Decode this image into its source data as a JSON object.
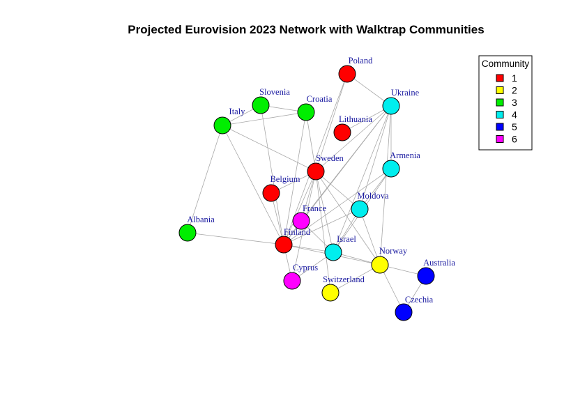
{
  "title": "Projected Eurovision 2023 Network with Walktrap Communities",
  "community_colors": {
    "1": "#ff0000",
    "2": "#ffff00",
    "3": "#00ee00",
    "4": "#00eeee",
    "5": "#0000ff",
    "6": "#ff00ff"
  },
  "legend": {
    "title": "Community",
    "items": [
      {
        "label": "1",
        "color": "#ff0000"
      },
      {
        "label": "2",
        "color": "#ffff00"
      },
      {
        "label": "3",
        "color": "#00ee00"
      },
      {
        "label": "4",
        "color": "#00eeee"
      },
      {
        "label": "5",
        "color": "#0000ff"
      },
      {
        "label": "6",
        "color": "#ff00ff"
      }
    ]
  },
  "nodes": [
    {
      "id": "Poland",
      "label": "Poland",
      "community": 1
    },
    {
      "id": "Ukraine",
      "label": "Ukraine",
      "community": 4
    },
    {
      "id": "Slovenia",
      "label": "Slovenia",
      "community": 3
    },
    {
      "id": "Croatia",
      "label": "Croatia",
      "community": 3
    },
    {
      "id": "Italy",
      "label": "Italy",
      "community": 3
    },
    {
      "id": "Lithuania",
      "label": "Lithuania",
      "community": 1
    },
    {
      "id": "Sweden",
      "label": "Sweden",
      "community": 1
    },
    {
      "id": "Armenia",
      "label": "Armenia",
      "community": 4
    },
    {
      "id": "Belgium",
      "label": "Belgium",
      "community": 1
    },
    {
      "id": "Moldova",
      "label": "Moldova",
      "community": 4
    },
    {
      "id": "France",
      "label": "France",
      "community": 6
    },
    {
      "id": "Albania",
      "label": "Albania",
      "community": 3
    },
    {
      "id": "Finland",
      "label": "Finland",
      "community": 1
    },
    {
      "id": "Israel",
      "label": "Israel",
      "community": 4
    },
    {
      "id": "Norway",
      "label": "Norway",
      "community": 2
    },
    {
      "id": "Australia",
      "label": "Australia",
      "community": 5
    },
    {
      "id": "Cyprus",
      "label": "Cyprus",
      "community": 6
    },
    {
      "id": "Switzerland",
      "label": "Switzerland",
      "community": 2
    },
    {
      "id": "Czechia",
      "label": "Czechia",
      "community": 5
    }
  ],
  "edges": [
    [
      "Poland",
      "Ukraine"
    ],
    [
      "Poland",
      "Sweden"
    ],
    [
      "Poland",
      "Finland"
    ],
    [
      "Slovenia",
      "Croatia"
    ],
    [
      "Slovenia",
      "Italy"
    ],
    [
      "Slovenia",
      "Finland"
    ],
    [
      "Croatia",
      "Italy"
    ],
    [
      "Croatia",
      "Sweden"
    ],
    [
      "Croatia",
      "Finland"
    ],
    [
      "Italy",
      "Albania"
    ],
    [
      "Italy",
      "Sweden"
    ],
    [
      "Italy",
      "Finland"
    ],
    [
      "Ukraine",
      "Sweden"
    ],
    [
      "Ukraine",
      "Moldova"
    ],
    [
      "Ukraine",
      "Israel"
    ],
    [
      "Ukraine",
      "Finland"
    ],
    [
      "Ukraine",
      "Norway"
    ],
    [
      "Ukraine",
      "France"
    ],
    [
      "Lithuania",
      "Ukraine"
    ],
    [
      "Sweden",
      "Belgium"
    ],
    [
      "Sweden",
      "France"
    ],
    [
      "Sweden",
      "Finland"
    ],
    [
      "Sweden",
      "Israel"
    ],
    [
      "Sweden",
      "Norway"
    ],
    [
      "Sweden",
      "Moldova"
    ],
    [
      "Sweden",
      "Cyprus"
    ],
    [
      "Sweden",
      "Switzerland"
    ],
    [
      "Armenia",
      "Ukraine"
    ],
    [
      "Armenia",
      "Israel"
    ],
    [
      "Armenia",
      "Finland"
    ],
    [
      "Armenia",
      "Moldova"
    ],
    [
      "Belgium",
      "Finland"
    ],
    [
      "Moldova",
      "Finland"
    ],
    [
      "Moldova",
      "Israel"
    ],
    [
      "Moldova",
      "Norway"
    ],
    [
      "France",
      "Finland"
    ],
    [
      "France",
      "Israel"
    ],
    [
      "Albania",
      "Finland"
    ],
    [
      "Finland",
      "Israel"
    ],
    [
      "Finland",
      "Norway"
    ],
    [
      "Finland",
      "Cyprus"
    ],
    [
      "Israel",
      "Norway"
    ],
    [
      "Israel",
      "Cyprus"
    ],
    [
      "Norway",
      "Australia"
    ],
    [
      "Norway",
      "Czechia"
    ],
    [
      "Norway",
      "Switzerland"
    ],
    [
      "Australia",
      "Czechia"
    ]
  ]
}
